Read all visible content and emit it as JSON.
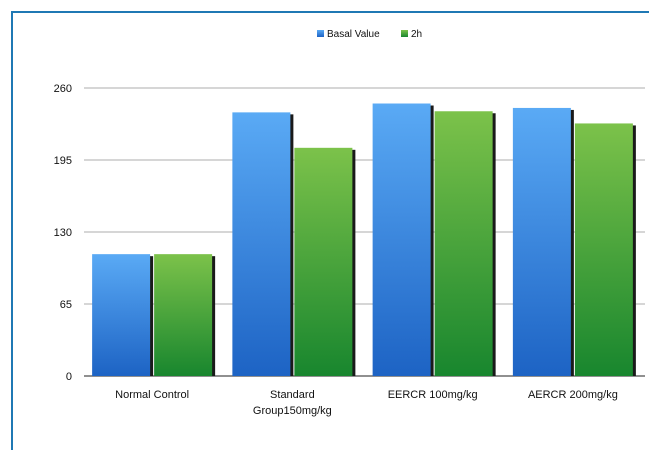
{
  "chart_data": {
    "type": "bar",
    "categories": [
      "Normal Control",
      "Standard Group150mg/kg",
      "EERCR 100mg/kg",
      "AERCR 200mg/kg"
    ],
    "category_lines": [
      [
        "Normal Control"
      ],
      [
        "Standard",
        "Group150mg/kg"
      ],
      [
        "EERCR 100mg/kg"
      ],
      [
        "AERCR 200mg/kg"
      ]
    ],
    "series": [
      {
        "name": "Basal Value",
        "values": [
          110,
          238,
          246,
          242
        ],
        "color": "#3f8ee6"
      },
      {
        "name": "2h",
        "values": [
          110,
          206,
          239,
          228
        ],
        "color": "#4ca63c"
      }
    ],
    "ylim": [
      0,
      260
    ],
    "yticks": [
      "0",
      "65",
      "130",
      "195",
      "260"
    ],
    "ytick_values": [
      0,
      65,
      130,
      195,
      260
    ],
    "grid": true,
    "legend_position": "top",
    "title": "",
    "xlabel": "",
    "ylabel": "",
    "border_color": "#1f78b4"
  }
}
